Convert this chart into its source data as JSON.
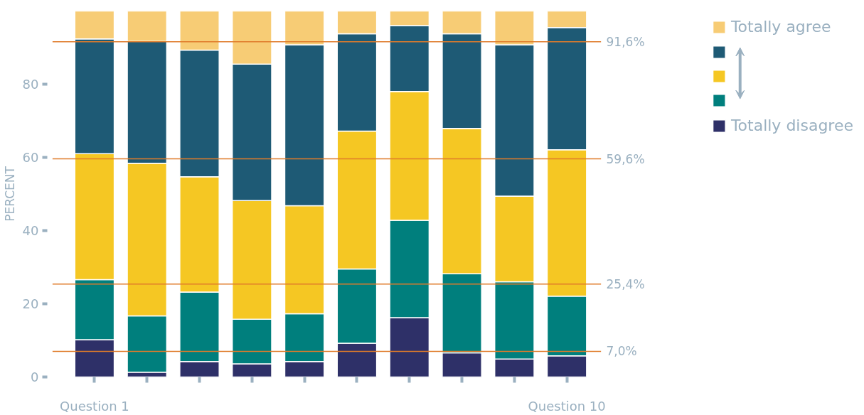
{
  "chart_data": {
    "type": "bar",
    "stacked": true,
    "ylabel": "PERCENT",
    "categories": [
      "Question 1",
      null,
      null,
      null,
      null,
      null,
      null,
      null,
      null,
      "Question 10"
    ],
    "series": [
      {
        "name": "Totally disagree",
        "color": "#2e3068",
        "values": [
          10.2,
          1.3,
          4.2,
          3.6,
          4.2,
          9.2,
          16.2,
          6.6,
          4.9,
          5.8
        ]
      },
      {
        "color": "#007f7d",
        "values": [
          16.4,
          15.4,
          19.0,
          12.2,
          13.1,
          20.3,
          26.6,
          21.6,
          21.1,
          16.3
        ]
      },
      {
        "color": "#f5c723",
        "values": [
          34.4,
          41.7,
          31.5,
          32.4,
          29.5,
          37.7,
          35.2,
          39.7,
          23.4,
          40.0
        ]
      },
      {
        "color": "#1e5a75",
        "values": [
          31.4,
          33.3,
          34.6,
          37.3,
          44.0,
          26.6,
          18.0,
          25.9,
          41.4,
          33.4
        ]
      },
      {
        "name": "Totally agree",
        "color": "#f7cc75",
        "values": [
          7.6,
          8.3,
          10.7,
          14.5,
          9.2,
          6.2,
          4.0,
          6.2,
          9.2,
          4.5
        ]
      }
    ],
    "ylim": [
      0,
      100
    ],
    "yticks": [
      0,
      20,
      40,
      60,
      80
    ],
    "grid": false,
    "legend": "top right",
    "ref_lines": [
      {
        "axis": "y",
        "value": 91.6,
        "label": "91,6%",
        "color": "#e07b2a"
      },
      {
        "axis": "y",
        "value": 59.6,
        "label": "59,6%",
        "color": "#e07b2a"
      },
      {
        "axis": "y",
        "value": 25.4,
        "label": "25,4%",
        "color": "#e07b2a"
      },
      {
        "axis": "y",
        "value": 7.0,
        "label": "7,0%",
        "color": "#e07b2a"
      }
    ]
  }
}
